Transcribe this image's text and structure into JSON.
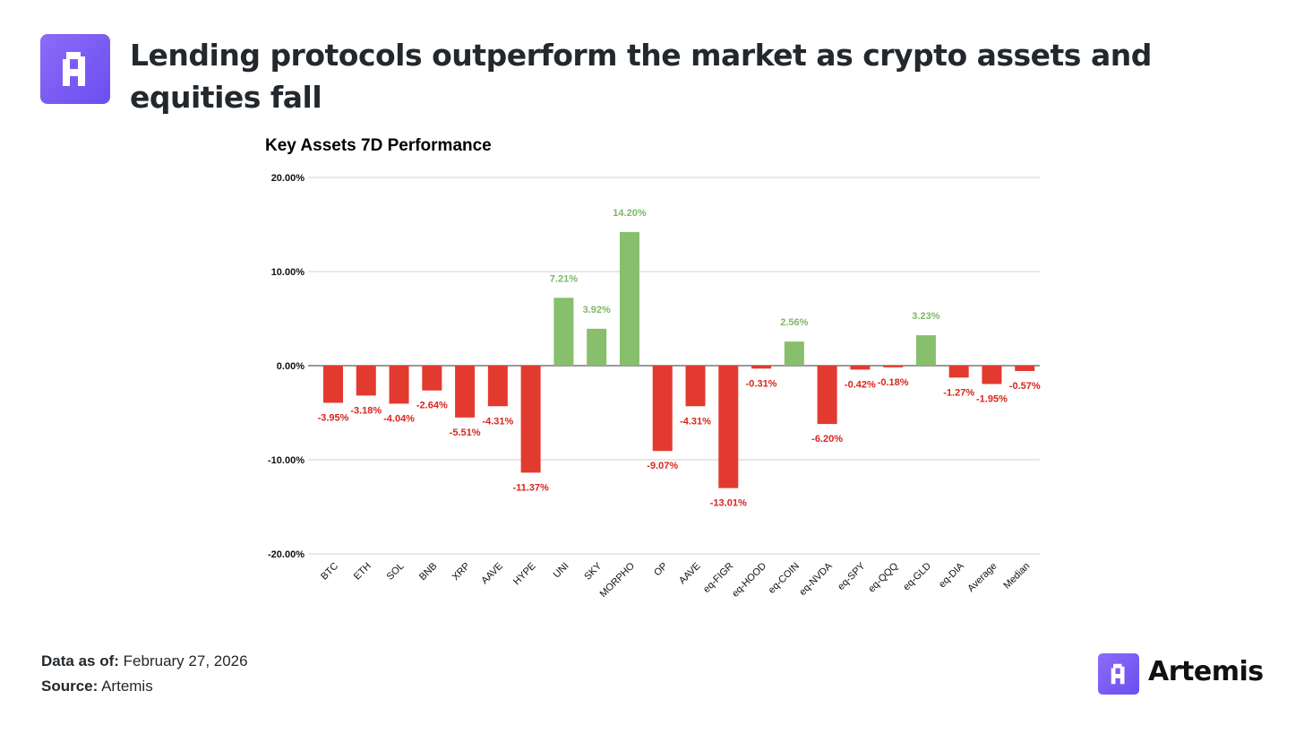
{
  "header": {
    "title": "Lending protocols outperform the market as crypto assets and equities fall",
    "logo_icon": "artemis-logo-icon"
  },
  "colors": {
    "positive": "#87bf6c",
    "negative": "#e33a2f",
    "positive_label": "#7cb868",
    "negative_label": "#d7261c",
    "brand": "#7355f2"
  },
  "chart_data": {
    "type": "bar",
    "title": "Key Assets 7D Performance",
    "xlabel": "",
    "ylabel": "",
    "ylim": [
      -20,
      20
    ],
    "yticks": [
      20,
      10,
      0,
      -10,
      -20
    ],
    "ytick_labels": [
      "20.00%",
      "10.00%",
      "0.00%",
      "-10.00%",
      "-20.00%"
    ],
    "grid": true,
    "categories": [
      "BTC",
      "ETH",
      "SOL",
      "BNB",
      "XRP",
      "AAVE",
      "HYPE",
      "UNI",
      "SKY",
      "MORPHO",
      "OP",
      "AAVE",
      "eq-FIGR",
      "eq-HOOD",
      "eq-COIN",
      "eq-NVDA",
      "eq-SPY",
      "eq-QQQ",
      "eq-GLD",
      "eq-DIA",
      "Average",
      "Median"
    ],
    "values": [
      -3.95,
      -3.18,
      -4.04,
      -2.64,
      -5.51,
      -4.31,
      -11.37,
      7.21,
      3.92,
      14.2,
      -9.07,
      -4.31,
      -13.01,
      -0.31,
      2.56,
      -6.2,
      -0.42,
      -0.18,
      3.23,
      -1.27,
      -1.95,
      -0.57
    ],
    "value_labels": [
      "-3.95%",
      "-3.18%",
      "-4.04%",
      "-2.64%",
      "-5.51%",
      "-4.31%",
      "-11.37%",
      "7.21%",
      "3.92%",
      "14.20%",
      "-9.07%",
      "-4.31%",
      "-13.01%",
      "-0.31%",
      "2.56%",
      "-6.20%",
      "-0.42%",
      "-0.18%",
      "3.23%",
      "-1.27%",
      "-1.95%",
      "-0.57%"
    ]
  },
  "footer": {
    "data_label": "Data as of:",
    "data_value": "February 27, 2026",
    "source_label": "Source:",
    "source_value": "Artemis"
  },
  "brand": {
    "name": "Artemis",
    "icon": "artemis-logo-icon"
  }
}
